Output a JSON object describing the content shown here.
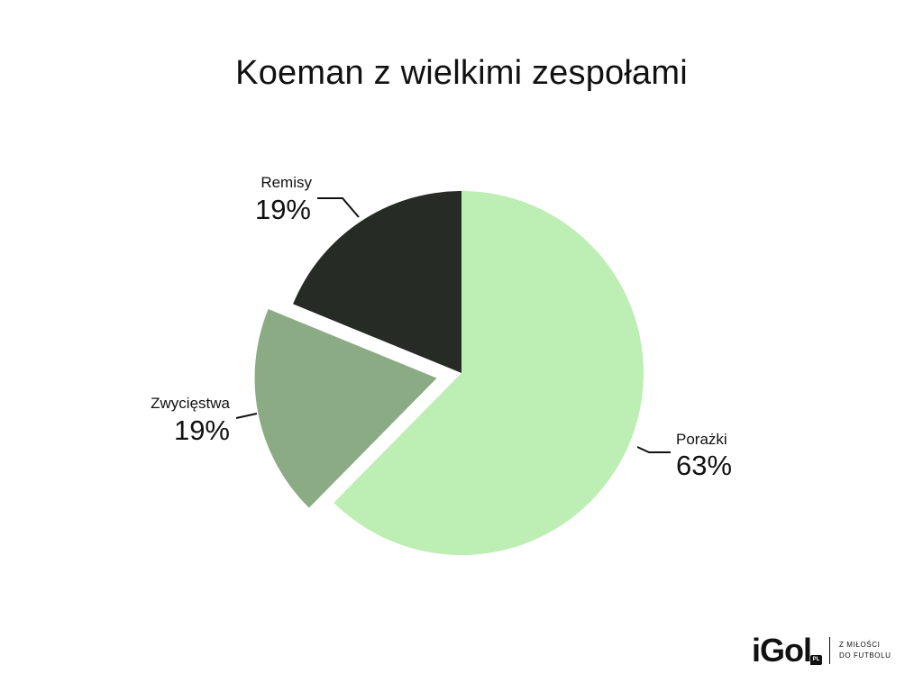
{
  "title": "Koeman z wielkimi zespołami",
  "chart_data": {
    "type": "pie",
    "title": "Koeman z wielkimi zespołami",
    "slices": [
      {
        "label": "Porażki",
        "value": 63,
        "display": "63%",
        "color": "#bdeeb3",
        "exploded": false
      },
      {
        "label": "Zwycięstwa",
        "value": 19,
        "display": "19%",
        "color": "#8aab83",
        "exploded": true
      },
      {
        "label": "Remisy",
        "value": 19,
        "display": "19%",
        "color": "#272b25",
        "exploded": false
      }
    ],
    "start": "12 o'clock",
    "direction": "clockwise",
    "legend": "none",
    "labels": "outside with leader lines"
  },
  "logo": {
    "wordmark": "iGol",
    "badge": "PL",
    "tagline_line1": "Z MIŁOŚCI",
    "tagline_line2": "DO FUTBOLU"
  }
}
